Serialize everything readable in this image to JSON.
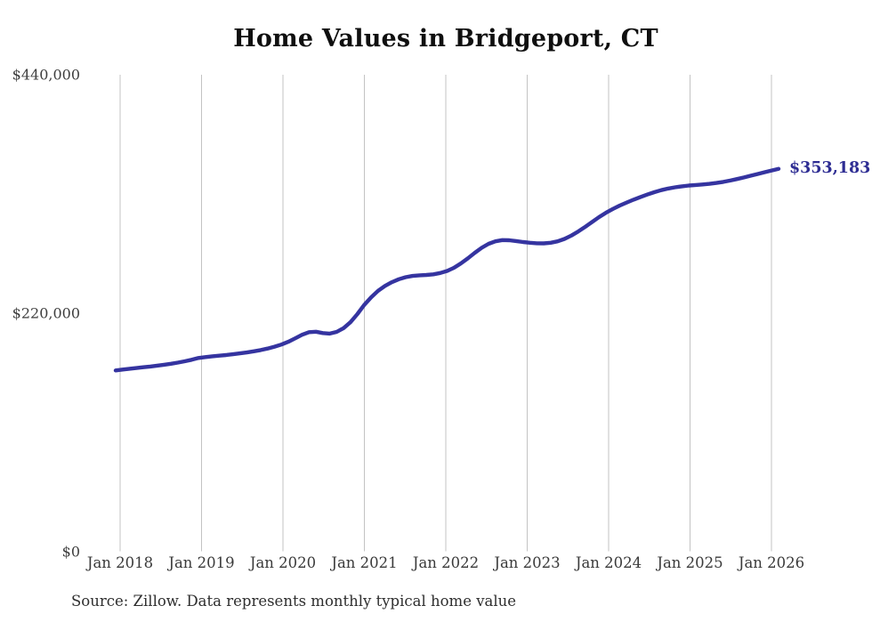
{
  "chart": {
    "title": "Home Values in Bridgeport, CT",
    "end_label": "$353,183",
    "source": "Source: Zillow. Data represents monthly typical home value"
  },
  "chart_data": {
    "type": "line",
    "title": "Home Values in Bridgeport, CT",
    "interval": "monthly",
    "start_month": "Jan 2018",
    "end_month": "Jan 2026",
    "x_tick_labels": [
      "Jan 2018",
      "Jan 2019",
      "Jan 2020",
      "Jan 2021",
      "Jan 2022",
      "Jan 2023",
      "Jan 2024",
      "Jan 2025",
      "Jan 2026"
    ],
    "y_ticks": [
      {
        "label": "$440,000",
        "value": 440000
      },
      {
        "label": "$220,000",
        "value": 220000
      },
      {
        "label": "$0",
        "value": 0
      }
    ],
    "ylim": [
      0,
      440000
    ],
    "grid": "vertical-only",
    "legend": "none",
    "final_value": 353183,
    "final_value_label": "$353,183",
    "line_color": "#3534a0",
    "grid_color": "#c3c3c3",
    "series": [
      {
        "name": "Monthly typical home value",
        "values": [
          167000,
          167800,
          168500,
          169200,
          169900,
          170600,
          171400,
          172200,
          173100,
          174200,
          175400,
          176800,
          178500,
          179300,
          180000,
          180600,
          181200,
          181900,
          182700,
          183600,
          184600,
          185800,
          187200,
          188900,
          190900,
          193400,
          196600,
          199900,
          202300,
          202700,
          201500,
          201000,
          202500,
          206000,
          211500,
          219000,
          227500,
          234500,
          240500,
          245000,
          248500,
          251200,
          253100,
          254200,
          254800,
          255100,
          255700,
          256900,
          258800,
          261800,
          265800,
          270500,
          275500,
          280200,
          283900,
          286200,
          287300,
          287200,
          286400,
          285500,
          284900,
          284400,
          284300,
          284900,
          286200,
          288400,
          291500,
          295300,
          299600,
          304100,
          308500,
          312600,
          316100,
          319200,
          322000,
          324600,
          327100,
          329400,
          331500,
          333400,
          334900,
          336100,
          337000,
          337700,
          338200,
          338700,
          339300,
          340100,
          341100,
          342300,
          343700,
          345200,
          346800,
          348400,
          350000,
          351600,
          353183
        ]
      }
    ],
    "source": "Source: Zillow. Data represents monthly typical home value"
  }
}
